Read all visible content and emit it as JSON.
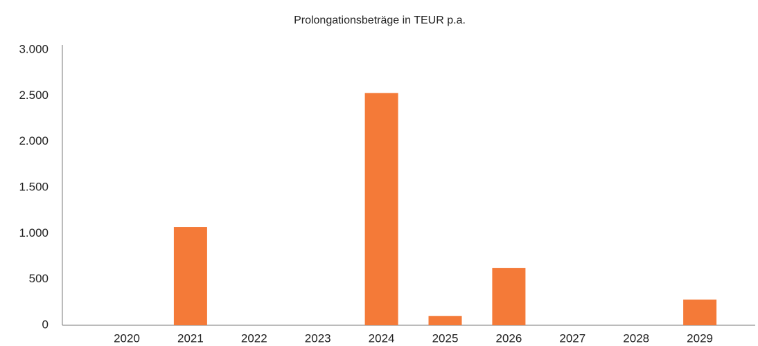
{
  "chart_data": {
    "type": "bar",
    "title": "Prolongationsbeträge in TEUR p.a.",
    "categories": [
      "2020",
      "2021",
      "2022",
      "2023",
      "2024",
      "2025",
      "2026",
      "2027",
      "2028",
      "2029"
    ],
    "values": [
      0,
      1070,
      0,
      0,
      2530,
      100,
      625,
      0,
      0,
      280
    ],
    "color": "#f47a38",
    "ylim": [
      0,
      3000
    ],
    "yticks": [
      0,
      500,
      {
        "value": 1000,
        "label": "1.000"
      },
      {
        "value": 1500,
        "label": "1.500"
      },
      {
        "value": 2000,
        "label": "2.000"
      },
      {
        "value": 2500,
        "label": "2.500"
      },
      {
        "value": 3000,
        "label": "3.000"
      }
    ],
    "grid": false
  }
}
